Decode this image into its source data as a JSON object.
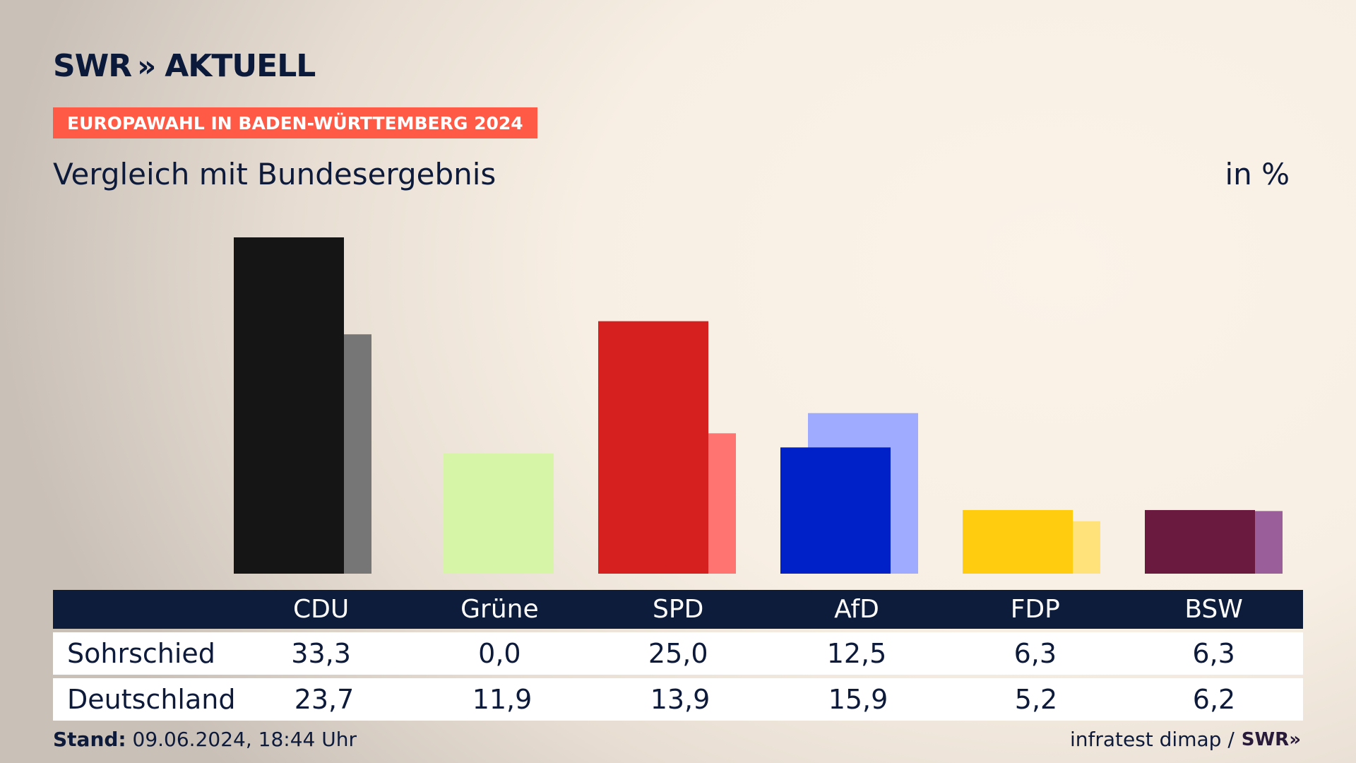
{
  "brand": {
    "name": "SWR",
    "chevrons": "»",
    "suffix": "AKTUELL"
  },
  "banner": "EUROPAWAHL IN BADEN-WÜRTTEMBERG 2024",
  "subtitle": "Vergleich mit Bundesergebnis",
  "unit": "in %",
  "chart_data": {
    "type": "bar",
    "categories": [
      "CDU",
      "Grüne",
      "SPD",
      "AfD",
      "FDP",
      "BSW"
    ],
    "series": [
      {
        "name": "Sohrschied",
        "values": [
          33.3,
          0.0,
          25.0,
          12.5,
          6.3,
          6.3
        ]
      },
      {
        "name": "Deutschland",
        "values": [
          23.7,
          11.9,
          13.9,
          15.9,
          5.2,
          6.2
        ]
      }
    ],
    "colors_primary": [
      "#151515",
      "#d6f5a6",
      "#d61f1f",
      "#0020c8",
      "#ffcc10",
      "#6a1a3e"
    ],
    "colors_secondary": [
      "#767676",
      "#d6f5a6",
      "#ff7470",
      "#9fabff",
      "#ffe27a",
      "#9a5e9a"
    ],
    "ylim": [
      0,
      33.3
    ]
  },
  "table": {
    "headers": [
      "",
      "CDU",
      "Grüne",
      "SPD",
      "AfD",
      "FDP",
      "BSW"
    ],
    "rows": [
      {
        "label": "Sohrschied",
        "values": [
          "33,3",
          "0,0",
          "25,0",
          "12,5",
          "6,3",
          "6,3"
        ]
      },
      {
        "label": "Deutschland",
        "values": [
          "23,7",
          "11,9",
          "13,9",
          "15,9",
          "5,2",
          "6,2"
        ]
      }
    ]
  },
  "footer": {
    "stand_label": "Stand:",
    "stand_value": " 09.06.2024, 18:44 Uhr",
    "source": "infratest dimap /",
    "source_brand": "SWR»"
  }
}
